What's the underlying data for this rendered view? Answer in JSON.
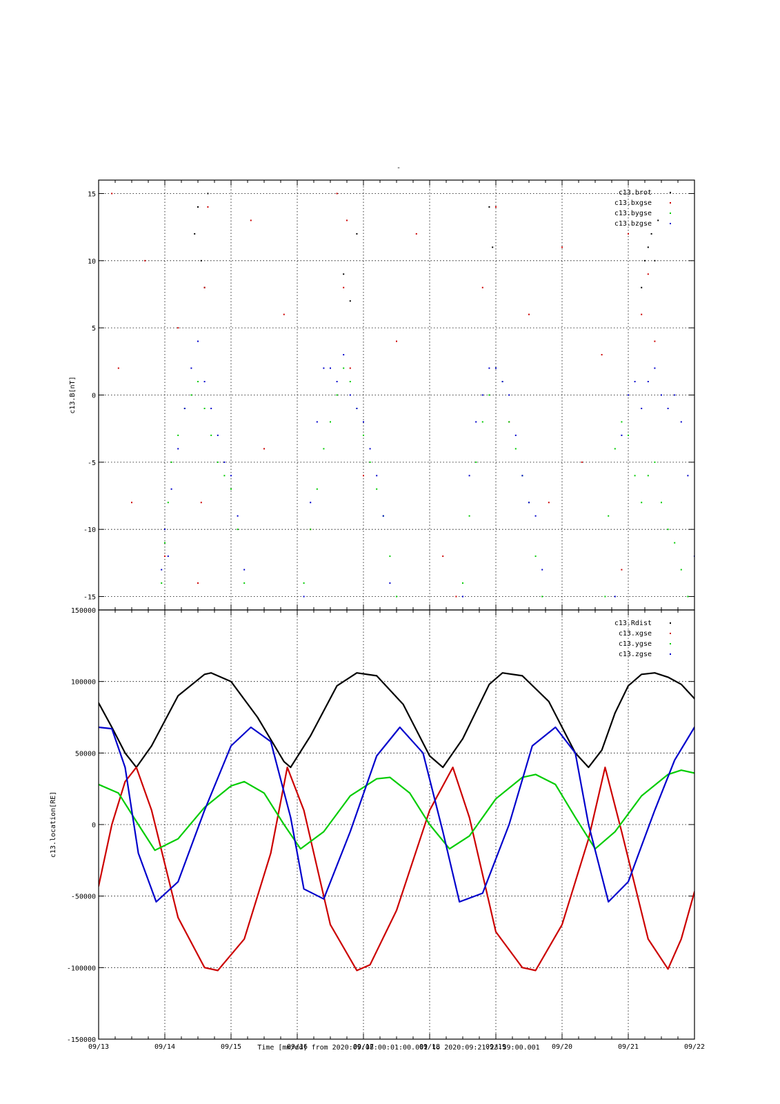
{
  "figure": {
    "title_mark": "-",
    "x_caption": "Time [mm/dd]  from 2020:09:08:00:01:00.001  to  2020:09:21:23:59:00.001"
  },
  "chart_data": [
    {
      "type": "scatter",
      "ylabel": "c13.B[nT]",
      "xlabel": "Time [mm/dd]  from 2020:09:08:00:01:00.001  to  2020:09:21:23:59:00.001",
      "xlim": [
        0,
        9
      ],
      "ylim": [
        -16,
        16
      ],
      "x_unit": "days after 09/13 00:00",
      "categories": [
        "09/13",
        "09/14",
        "09/15",
        "09/16",
        "09/17",
        "09/18",
        "09/19",
        "09/20",
        "09/21",
        "09/22"
      ],
      "yticks": [
        15,
        10,
        5,
        0,
        -5,
        -10,
        -15
      ],
      "grid": true,
      "legend_position": "top-right",
      "series": [
        {
          "name": "c13.brot",
          "color": "#000000",
          "x": [
            1.45,
            1.5,
            1.55,
            1.6,
            1.65,
            3.7,
            3.8,
            3.9,
            5.9,
            5.95,
            8.2,
            8.25,
            8.3,
            8.35,
            8.4,
            8.45
          ],
          "y": [
            12,
            14,
            10,
            8,
            15,
            9,
            7,
            12,
            14,
            11,
            8,
            10,
            11,
            12,
            10,
            13
          ]
        },
        {
          "name": "c13.bxgse",
          "color": "#cc0000",
          "x": [
            0.2,
            0.3,
            0.5,
            0.7,
            1.0,
            1.2,
            1.5,
            1.55,
            1.6,
            1.65,
            2.3,
            2.5,
            2.8,
            3.2,
            3.6,
            3.7,
            3.75,
            3.8,
            4.0,
            4.5,
            4.8,
            5.2,
            5.4,
            5.8,
            6.0,
            6.2,
            6.5,
            6.8,
            7.0,
            7.3,
            7.6,
            7.9,
            8.0,
            8.2,
            8.3,
            8.4
          ],
          "y": [
            15,
            2,
            -8,
            10,
            -12,
            5,
            -14,
            -8,
            8,
            14,
            13,
            -4,
            6,
            -10,
            15,
            8,
            13,
            2,
            -6,
            4,
            12,
            -12,
            -15,
            8,
            14,
            -2,
            6,
            -8,
            11,
            -5,
            3,
            -13,
            12,
            6,
            9,
            4
          ]
        },
        {
          "name": "c13.bygse",
          "color": "#00cc00",
          "x": [
            0.95,
            1.0,
            1.05,
            1.1,
            1.2,
            1.3,
            1.4,
            1.5,
            1.6,
            1.7,
            1.8,
            1.9,
            2.0,
            2.1,
            2.2,
            3.1,
            3.2,
            3.3,
            3.4,
            3.5,
            3.6,
            3.7,
            3.8,
            3.9,
            4.0,
            4.1,
            4.2,
            4.3,
            4.4,
            4.5,
            5.5,
            5.6,
            5.7,
            5.8,
            5.9,
            6.0,
            6.1,
            6.2,
            6.3,
            6.4,
            6.5,
            6.6,
            6.7,
            7.65,
            7.7,
            7.8,
            7.9,
            8.0,
            8.1,
            8.2,
            8.3,
            8.4,
            8.5,
            8.6,
            8.7,
            8.8,
            8.9
          ],
          "y": [
            -14,
            -11,
            -8,
            -5,
            -3,
            -1,
            0,
            1,
            -1,
            -3,
            -5,
            -6,
            -7,
            -10,
            -14,
            -14,
            -10,
            -7,
            -4,
            -2,
            0,
            2,
            1,
            -1,
            -3,
            -5,
            -7,
            -9,
            -12,
            -15,
            -14,
            -9,
            -5,
            -2,
            0,
            2,
            1,
            -2,
            -4,
            -6,
            -8,
            -12,
            -15,
            -15,
            -9,
            -4,
            -2,
            -3,
            -6,
            -8,
            -6,
            -5,
            -8,
            -10,
            -11,
            -13,
            -15
          ]
        },
        {
          "name": "c13.bzgse",
          "color": "#0000cc",
          "x": [
            0.95,
            1.0,
            1.05,
            1.1,
            1.2,
            1.3,
            1.4,
            1.5,
            1.6,
            1.7,
            1.8,
            1.9,
            2.0,
            2.1,
            2.2,
            3.1,
            3.2,
            3.3,
            3.4,
            3.5,
            3.6,
            3.7,
            3.8,
            3.9,
            4.0,
            4.1,
            4.2,
            4.3,
            4.4,
            5.5,
            5.6,
            5.7,
            5.8,
            5.9,
            6.0,
            6.1,
            6.2,
            6.3,
            6.4,
            6.5,
            6.6,
            6.7,
            7.8,
            7.9,
            8.0,
            8.1,
            8.2,
            8.3,
            8.4,
            8.5,
            8.6,
            8.7,
            8.8,
            8.9,
            9.0
          ],
          "y": [
            -13,
            -10,
            -12,
            -7,
            -4,
            -1,
            2,
            4,
            1,
            -1,
            -3,
            -5,
            -6,
            -9,
            -13,
            -15,
            -8,
            -2,
            2,
            2,
            1,
            3,
            0,
            -1,
            -2,
            -4,
            -6,
            -9,
            -14,
            -15,
            -6,
            -2,
            0,
            2,
            2,
            1,
            0,
            -3,
            -6,
            -8,
            -9,
            -13,
            -15,
            -3,
            0,
            1,
            -1,
            1,
            2,
            0,
            -1,
            0,
            -2,
            -6,
            -12
          ]
        }
      ]
    },
    {
      "type": "line",
      "ylabel": "c13.location[RE]",
      "xlabel": "Time [mm/dd]  from 2020:09:08:00:01:00.001  to  2020:09:21:23:59:00.001",
      "xlim": [
        0,
        9
      ],
      "ylim": [
        -150000,
        150000
      ],
      "x_unit": "days after 09/13 00:00",
      "categories": [
        "09/13",
        "09/14",
        "09/15",
        "09/16",
        "09/17",
        "09/18",
        "09/19",
        "09/20",
        "09/21",
        "09/22"
      ],
      "yticks": [
        150000,
        100000,
        50000,
        0,
        -50000,
        -100000,
        -150000
      ],
      "grid": true,
      "legend_position": "top-right",
      "series": [
        {
          "name": "c13.Rdist",
          "color": "#000000",
          "x": [
            0,
            0.2,
            0.4,
            0.57,
            0.8,
            1.2,
            1.6,
            1.7,
            2.0,
            2.4,
            2.8,
            2.9,
            3.2,
            3.6,
            3.9,
            4.2,
            4.6,
            5.0,
            5.2,
            5.5,
            5.9,
            6.1,
            6.4,
            6.8,
            7.2,
            7.4,
            7.6,
            7.8,
            8.0,
            8.2,
            8.4,
            8.6,
            8.8,
            9.0
          ],
          "y": [
            85000,
            68000,
            50000,
            40000,
            55000,
            90000,
            105000,
            106000,
            100000,
            75000,
            44000,
            40000,
            62000,
            97000,
            106000,
            104000,
            84000,
            48000,
            40000,
            60000,
            98000,
            106000,
            104000,
            86000,
            50000,
            40000,
            52000,
            78000,
            97000,
            105000,
            106000,
            103000,
            98000,
            88000
          ]
        },
        {
          "name": "c13.xgse",
          "color": "#cc0000",
          "x": [
            0,
            0.2,
            0.4,
            0.57,
            0.8,
            1.2,
            1.6,
            1.8,
            2.2,
            2.6,
            2.85,
            3.1,
            3.5,
            3.9,
            4.1,
            4.5,
            5.0,
            5.35,
            5.6,
            6.0,
            6.4,
            6.6,
            7.0,
            7.4,
            7.65,
            7.9,
            8.3,
            8.6,
            8.8,
            9.0
          ],
          "y": [
            -43000,
            0,
            30000,
            40000,
            10000,
            -65000,
            -100000,
            -102000,
            -80000,
            -20000,
            40000,
            10000,
            -70000,
            -102000,
            -98000,
            -60000,
            10000,
            40000,
            5000,
            -75000,
            -100000,
            -102000,
            -70000,
            -10000,
            40000,
            -5000,
            -80000,
            -101000,
            -80000,
            -47000
          ]
        },
        {
          "name": "c13.ygse",
          "color": "#00cc00",
          "x": [
            0,
            0.3,
            0.6,
            0.85,
            1.2,
            1.6,
            2.0,
            2.2,
            2.5,
            2.8,
            3.05,
            3.4,
            3.8,
            4.2,
            4.4,
            4.7,
            5.0,
            5.3,
            5.6,
            6.0,
            6.4,
            6.6,
            6.9,
            7.2,
            7.5,
            7.8,
            8.2,
            8.6,
            8.8,
            9.0
          ],
          "y": [
            28000,
            22000,
            0,
            -18000,
            -10000,
            12000,
            27000,
            30000,
            22000,
            0,
            -17000,
            -5000,
            20000,
            32000,
            33000,
            22000,
            0,
            -17000,
            -8000,
            18000,
            33000,
            35000,
            28000,
            5000,
            -17000,
            -5000,
            20000,
            35000,
            38000,
            36000
          ]
        },
        {
          "name": "c13.zgse",
          "color": "#0000cc",
          "x": [
            0,
            0.2,
            0.4,
            0.6,
            0.87,
            1.2,
            1.6,
            2.0,
            2.3,
            2.6,
            2.9,
            3.1,
            3.4,
            3.8,
            4.2,
            4.55,
            4.9,
            5.2,
            5.45,
            5.8,
            6.2,
            6.55,
            6.9,
            7.2,
            7.4,
            7.7,
            8.0,
            8.4,
            8.7,
            9.0
          ],
          "y": [
            68000,
            67000,
            40000,
            -20000,
            -54000,
            -40000,
            10000,
            55000,
            68000,
            58000,
            5000,
            -45000,
            -52000,
            -5000,
            48000,
            68000,
            50000,
            -5000,
            -54000,
            -48000,
            0,
            55000,
            68000,
            50000,
            0,
            -54000,
            -40000,
            10000,
            45000,
            68000
          ]
        }
      ]
    }
  ]
}
